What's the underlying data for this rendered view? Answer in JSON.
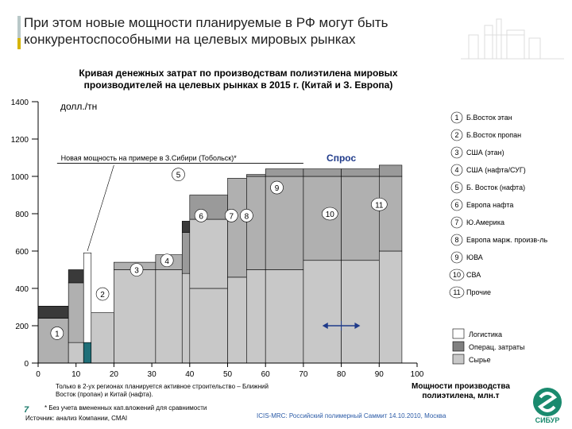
{
  "title": "При этом новые мощности планируемые в РФ могут быть конкурентоспособными на целевых мировых рынках",
  "chart_data": {
    "type": "bar",
    "subtype": "cost-curve",
    "title": "Кривая денежных затрат по производствам полиэтилена мировых производителей на целевых рынках в 2015 г. (Китай и З. Европа)",
    "ylabel": "долл./тн",
    "xlabel": "Мощности производства полиэтилена, млн.т",
    "xlim": [
      0,
      100
    ],
    "ylim": [
      0,
      1400
    ],
    "x_ticks": [
      0,
      10,
      20,
      30,
      40,
      50,
      60,
      70,
      80,
      90,
      100
    ],
    "x_tick_labels": [
      "0",
      "10",
      "20",
      "30",
      "40",
      "50",
      "60",
      "70",
      "80",
      "90",
      "100"
    ],
    "y_ticks": [
      0,
      200,
      400,
      600,
      800,
      1000,
      1200,
      1400
    ],
    "y_tick_labels": [
      "0",
      "200",
      "400",
      "600",
      "800",
      "1000",
      "1200",
      "1400"
    ],
    "component_legend": [
      {
        "name": "Логистика",
        "color": "#ffffff"
      },
      {
        "name": "Операц. затраты",
        "color": "#808080"
      },
      {
        "name": "Сырье",
        "color": "#c8c8c8"
      }
    ],
    "segments": [
      {
        "x0": 0,
        "x1": 8,
        "feed": 0,
        "ops": 240,
        "log": 0,
        "fill": "#b0b0b0",
        "top": "#3a3a3a",
        "top_h": 65
      },
      {
        "x0": 8,
        "x1": 12,
        "feed": 110,
        "ops": 320,
        "log": 0,
        "fill": "#b0b0b0",
        "top": "#3a3a3a",
        "top_h": 70
      },
      {
        "x0": 12,
        "x1": 14,
        "feed": 0,
        "ops": 0,
        "log": 590,
        "fill": "#ffffff",
        "top": "",
        "top_h": 0,
        "highlight": "#1f6f78",
        "highlight_h": 110
      },
      {
        "x0": 14,
        "x1": 20,
        "feed": 270,
        "ops": 0,
        "log": 0,
        "fill": "#ffffff",
        "top": "",
        "top_h": 0
      },
      {
        "x0": 20,
        "x1": 31,
        "feed": 500,
        "ops": 40,
        "log": 0,
        "fill": "#b0b0b0",
        "top": "",
        "top_h": 0
      },
      {
        "x0": 31,
        "x1": 38,
        "feed": 500,
        "ops": 80,
        "log": 0,
        "fill": "#b0b0b0",
        "top": "",
        "top_h": 0
      },
      {
        "x0": 38,
        "x1": 40,
        "feed": 480,
        "ops": 0,
        "log": 220,
        "fill": "#b0b0b0",
        "top": "#3a3a3a",
        "top_h": 60
      },
      {
        "x0": 40,
        "x1": 50,
        "feed": 400,
        "ops": 370,
        "log": 130,
        "fill": "#c8c8c8",
        "top": "",
        "top_h": 0
      },
      {
        "x0": 50,
        "x1": 55,
        "feed": 460,
        "ops": 530,
        "log": 0,
        "fill": "#b0b0b0",
        "top": "",
        "top_h": 0
      },
      {
        "x0": 55,
        "x1": 60,
        "feed": 500,
        "ops": 500,
        "log": 10,
        "fill": "#b0b0b0",
        "top": "",
        "top_h": 0
      },
      {
        "x0": 60,
        "x1": 70,
        "feed": 500,
        "ops": 500,
        "log": 40,
        "fill": "#b0b0b0",
        "top": "",
        "top_h": 0
      },
      {
        "x0": 70,
        "x1": 80,
        "feed": 550,
        "ops": 450,
        "log": 40,
        "fill": "#b0b0b0",
        "top": "",
        "top_h": 0
      },
      {
        "x0": 80,
        "x1": 90,
        "feed": 550,
        "ops": 450,
        "log": 40,
        "fill": "#b0b0b0",
        "top": "",
        "top_h": 0
      },
      {
        "x0": 90,
        "x1": 96,
        "feed": 600,
        "ops": 400,
        "log": 60,
        "fill": "#b0b0b0",
        "top": "",
        "top_h": 0
      }
    ],
    "bar_labels": [
      {
        "num": "1",
        "x": 5,
        "y": 160
      },
      {
        "num": "2",
        "x": 17,
        "y": 370
      },
      {
        "num": "3",
        "x": 26,
        "y": 500
      },
      {
        "num": "4",
        "x": 34,
        "y": 550
      },
      {
        "num": "5",
        "x": 37,
        "y": 1010
      },
      {
        "num": "6",
        "x": 43,
        "y": 790
      },
      {
        "num": "7",
        "x": 51,
        "y": 790
      },
      {
        "num": "8",
        "x": 55,
        "y": 790
      },
      {
        "num": "9",
        "x": 63,
        "y": 940
      },
      {
        "num": "10",
        "x": 77,
        "y": 800
      },
      {
        "num": "11",
        "x": 90,
        "y": 850
      }
    ],
    "annotations": {
      "new_capacity": "Новая мощность на примере в З.Сибири (Тобольск)*",
      "demand": "Спрос",
      "demand_arrow_x": [
        75,
        85
      ],
      "demand_arrow_y": 200
    },
    "legend": [
      {
        "num": "1",
        "label": "Б.Восток этан"
      },
      {
        "num": "2",
        "label": "Б.Восток пропан"
      },
      {
        "num": "3",
        "label": "США (этан)"
      },
      {
        "num": "4",
        "label": "США (нафта/СУГ)"
      },
      {
        "num": "5",
        "label": "Б. Восток (нафта)"
      },
      {
        "num": "6",
        "label": "Европа нафта"
      },
      {
        "num": "7",
        "label": "Ю.Америка"
      },
      {
        "num": "8",
        "label": "Европа марж. произв-ль"
      },
      {
        "num": "9",
        "label": "ЮВА"
      },
      {
        "num": "10",
        "label": "СВА"
      },
      {
        "num": "11",
        "label": "Прочие"
      }
    ]
  },
  "footnotes": {
    "note1": "Только в 2-ух регионах планируется активное строительство – Ближний Восток (пропан) и Китай (нафта).",
    "note2": "* Без учета вмененных кап.вложений для сравнимости",
    "source": "Источник: анализ Компании, CMAI"
  },
  "page_number": "7",
  "summit": "ICIS-MRC: Российский полимерный Саммит 14.10.2010, Москва",
  "xaxis_title_line1": "Мощности производства",
  "xaxis_title_line2": "полиэтилена, млн.т",
  "logo_text": "СИБУР"
}
